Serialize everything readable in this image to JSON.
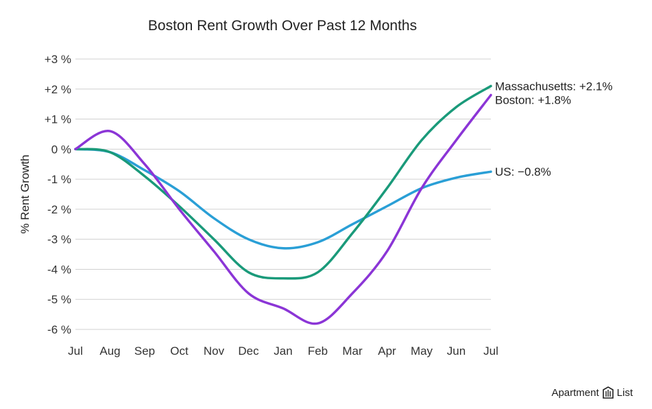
{
  "chart_data": {
    "type": "line",
    "title": "Boston Rent Growth Over Past 12 Months",
    "xlabel": "",
    "ylabel": "% Rent Growth",
    "categories": [
      "Jul",
      "Aug",
      "Sep",
      "Oct",
      "Nov",
      "Dec",
      "Jan",
      "Feb",
      "Mar",
      "Apr",
      "May",
      "Jun",
      "Jul"
    ],
    "y_ticks": [
      "+3 %",
      "+2 %",
      "+1 %",
      "0 %",
      "-1 %",
      "-2 %",
      "-3 %",
      "-4 %",
      "-5 %",
      "-6 %"
    ],
    "ylim": [
      -6,
      3
    ],
    "grid": true,
    "legend": "inline end labels",
    "series": [
      {
        "name": "US",
        "label": "US: −0.8%",
        "color": "#2a9fd6",
        "values": [
          0.0,
          -0.1,
          -0.7,
          -1.4,
          -2.3,
          -3.0,
          -3.3,
          -3.1,
          -2.5,
          -1.9,
          -1.3,
          -0.95,
          -0.75
        ]
      },
      {
        "name": "Massachusetts",
        "label": "Massachusetts: +2.1%",
        "color": "#1a9a7a",
        "values": [
          0.0,
          -0.1,
          -0.9,
          -1.9,
          -3.0,
          -4.1,
          -4.3,
          -4.1,
          -2.8,
          -1.3,
          0.3,
          1.4,
          2.1
        ]
      },
      {
        "name": "Boston",
        "label": "Boston: +1.8%",
        "color": "#8b35d6",
        "values": [
          0.0,
          0.6,
          -0.5,
          -2.0,
          -3.4,
          -4.8,
          -5.3,
          -5.8,
          -4.8,
          -3.4,
          -1.3,
          0.3,
          1.8
        ]
      }
    ]
  },
  "brand": {
    "name_left": "Apartment",
    "name_right": "List"
  }
}
